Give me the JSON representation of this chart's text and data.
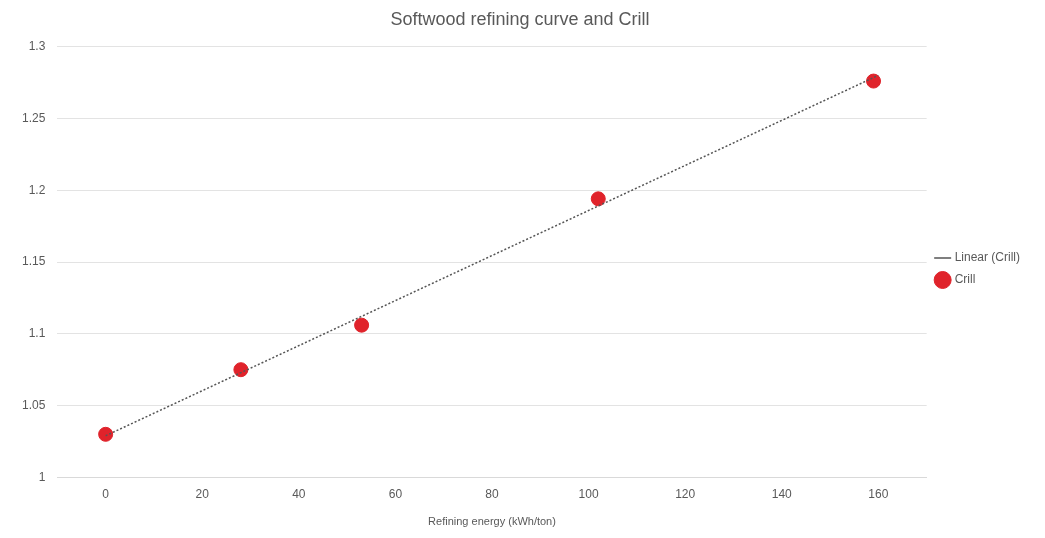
{
  "chart_data": {
    "type": "scatter",
    "title": "Softwood refining curve and Crill",
    "xlabel": "Refining energy (kWh/ton)",
    "series": [
      {
        "name": "Crill",
        "type": "scatter",
        "color": "#e0232b",
        "x": [
          0,
          28,
          53,
          102,
          159
        ],
        "values": [
          1.03,
          1.075,
          1.106,
          1.194,
          1.276
        ],
        "marker": "circle"
      },
      {
        "name": "Linear (Crill)",
        "type": "line",
        "color": "#555555",
        "x": [
          0,
          160
        ],
        "values": [
          1.029,
          1.28
        ],
        "line_style": "dotted",
        "marker": "none"
      }
    ],
    "xlim": [
      -10,
      170
    ],
    "xticks": [
      0,
      20,
      40,
      60,
      80,
      100,
      120,
      140,
      160
    ],
    "ylim": [
      1,
      1.3
    ],
    "yticks": [
      1,
      1.05,
      1.1,
      1.15,
      1.2,
      1.25,
      1.3
    ],
    "grid": "y",
    "legend": "right"
  }
}
